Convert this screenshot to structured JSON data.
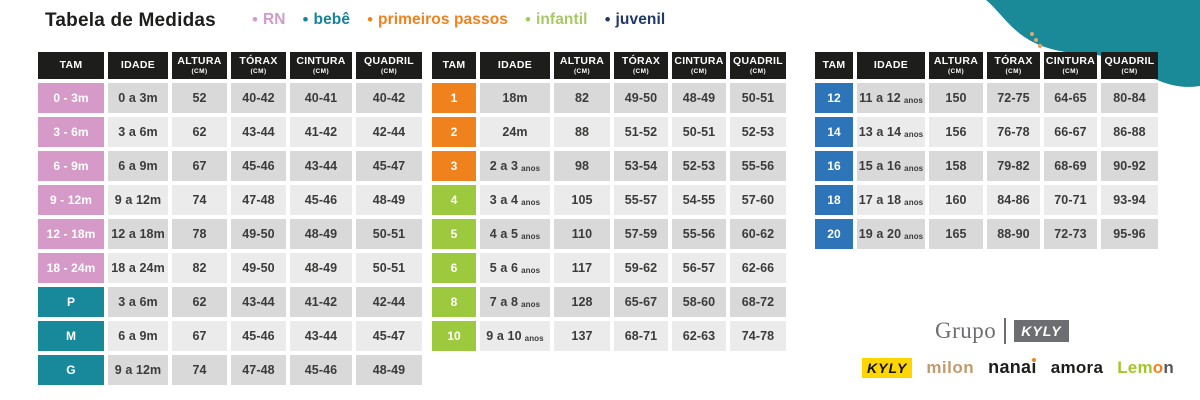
{
  "title": "Tabela de Medidas",
  "legend": [
    {
      "label": "RN",
      "color": "#cf9cca"
    },
    {
      "label": "bebê",
      "color": "#17839b"
    },
    {
      "label": "primeiros passos",
      "color": "#f0821e"
    },
    {
      "label": "infantil",
      "color": "#a6c865"
    },
    {
      "label": "juvenil",
      "color": "#203a66"
    }
  ],
  "columns": [
    {
      "label": "TAM",
      "sub": ""
    },
    {
      "label": "IDADE",
      "sub": ""
    },
    {
      "label": "ALTURA",
      "sub": "(CM)"
    },
    {
      "label": "TÓRAX",
      "sub": "(CM)"
    },
    {
      "label": "CINTURA",
      "sub": "(CM)"
    },
    {
      "label": "QUADRIL",
      "sub": "(CM)"
    }
  ],
  "colors": {
    "pink": "#d59ac7",
    "teal": "#18899a",
    "orange": "#f0821e",
    "green": "#9dc93e",
    "blue": "#2e74b8",
    "header_bg": "#1d1d1b",
    "row_dark": "#d9d9d9",
    "row_light": "#ebebeb",
    "blob": "#1b8a98",
    "text": "#3b3b3a"
  },
  "tables": [
    {
      "name": "rn-bebe",
      "rows": [
        {
          "tam": "0 - 3m",
          "group": "pink",
          "idade": "0 a 3m",
          "idade_small": "",
          "altura": "52",
          "torax": "40-42",
          "cintura": "40-41",
          "quadril": "40-42"
        },
        {
          "tam": "3 - 6m",
          "group": "pink",
          "idade": "3 a 6m",
          "idade_small": "",
          "altura": "62",
          "torax": "43-44",
          "cintura": "41-42",
          "quadril": "42-44"
        },
        {
          "tam": "6 - 9m",
          "group": "pink",
          "idade": "6 a 9m",
          "idade_small": "",
          "altura": "67",
          "torax": "45-46",
          "cintura": "43-44",
          "quadril": "45-47"
        },
        {
          "tam": "9 - 12m",
          "group": "pink",
          "idade": "9 a 12m",
          "idade_small": "",
          "altura": "74",
          "torax": "47-48",
          "cintura": "45-46",
          "quadril": "48-49"
        },
        {
          "tam": "12 - 18m",
          "group": "pink",
          "idade": "12 a 18m",
          "idade_small": "",
          "altura": "78",
          "torax": "49-50",
          "cintura": "48-49",
          "quadril": "50-51"
        },
        {
          "tam": "18 - 24m",
          "group": "pink",
          "idade": "18 a 24m",
          "idade_small": "",
          "altura": "82",
          "torax": "49-50",
          "cintura": "48-49",
          "quadril": "50-51"
        },
        {
          "tam": "P",
          "group": "teal",
          "idade": "3 a 6m",
          "idade_small": "",
          "altura": "62",
          "torax": "43-44",
          "cintura": "41-42",
          "quadril": "42-44"
        },
        {
          "tam": "M",
          "group": "teal",
          "idade": "6 a 9m",
          "idade_small": "",
          "altura": "67",
          "torax": "45-46",
          "cintura": "43-44",
          "quadril": "45-47"
        },
        {
          "tam": "G",
          "group": "teal",
          "idade": "9 a 12m",
          "idade_small": "",
          "altura": "74",
          "torax": "47-48",
          "cintura": "45-46",
          "quadril": "48-49"
        }
      ]
    },
    {
      "name": "primeiros-passos-infantil",
      "rows": [
        {
          "tam": "1",
          "group": "orange",
          "idade": "18m",
          "idade_small": "",
          "altura": "82",
          "torax": "49-50",
          "cintura": "48-49",
          "quadril": "50-51"
        },
        {
          "tam": "2",
          "group": "orange",
          "idade": "24m",
          "idade_small": "",
          "altura": "88",
          "torax": "51-52",
          "cintura": "50-51",
          "quadril": "52-53"
        },
        {
          "tam": "3",
          "group": "orange",
          "idade": "2 a 3",
          "idade_small": "anos",
          "altura": "98",
          "torax": "53-54",
          "cintura": "52-53",
          "quadril": "55-56"
        },
        {
          "tam": "4",
          "group": "green",
          "idade": "3 a 4",
          "idade_small": "anos",
          "altura": "105",
          "torax": "55-57",
          "cintura": "54-55",
          "quadril": "57-60"
        },
        {
          "tam": "5",
          "group": "green",
          "idade": "4 a 5",
          "idade_small": "anos",
          "altura": "110",
          "torax": "57-59",
          "cintura": "55-56",
          "quadril": "60-62"
        },
        {
          "tam": "6",
          "group": "green",
          "idade": "5 a 6",
          "idade_small": "anos",
          "altura": "117",
          "torax": "59-62",
          "cintura": "56-57",
          "quadril": "62-66"
        },
        {
          "tam": "8",
          "group": "green",
          "idade": "7 a 8",
          "idade_small": "anos",
          "altura": "128",
          "torax": "65-67",
          "cintura": "58-60",
          "quadril": "68-72"
        },
        {
          "tam": "10",
          "group": "green",
          "idade": "9 a 10",
          "idade_small": "anos",
          "altura": "137",
          "torax": "68-71",
          "cintura": "62-63",
          "quadril": "74-78"
        }
      ]
    },
    {
      "name": "juvenil",
      "rows": [
        {
          "tam": "12",
          "group": "blue",
          "idade": "11 a 12",
          "idade_small": "anos",
          "altura": "150",
          "torax": "72-75",
          "cintura": "64-65",
          "quadril": "80-84"
        },
        {
          "tam": "14",
          "group": "blue",
          "idade": "13 a 14",
          "idade_small": "anos",
          "altura": "156",
          "torax": "76-78",
          "cintura": "66-67",
          "quadril": "86-88"
        },
        {
          "tam": "16",
          "group": "blue",
          "idade": "15 a 16",
          "idade_small": "anos",
          "altura": "158",
          "torax": "79-82",
          "cintura": "68-69",
          "quadril": "90-92"
        },
        {
          "tam": "18",
          "group": "blue",
          "idade": "17 a 18",
          "idade_small": "anos",
          "altura": "160",
          "torax": "84-86",
          "cintura": "70-71",
          "quadril": "93-94"
        },
        {
          "tam": "20",
          "group": "blue",
          "idade": "19 a 20",
          "idade_small": "anos",
          "altura": "165",
          "torax": "88-90",
          "cintura": "72-73",
          "quadril": "95-96"
        }
      ]
    }
  ],
  "footer": {
    "grupo_text": "Grupo",
    "grupo_badge": "KYLY",
    "brands": [
      {
        "name": "kyly",
        "text": "KYLY",
        "style": "kyly"
      },
      {
        "name": "milon",
        "text": "milon",
        "style": "milon"
      },
      {
        "name": "nanai",
        "text": "nanai",
        "style": "nanai"
      },
      {
        "name": "amora",
        "text": "amora",
        "style": "amora"
      },
      {
        "name": "lemon",
        "text": "Lemon",
        "style": "lemon",
        "part_colors": [
          "#a3c62c",
          "#f0821e",
          "#58585a"
        ]
      }
    ]
  }
}
